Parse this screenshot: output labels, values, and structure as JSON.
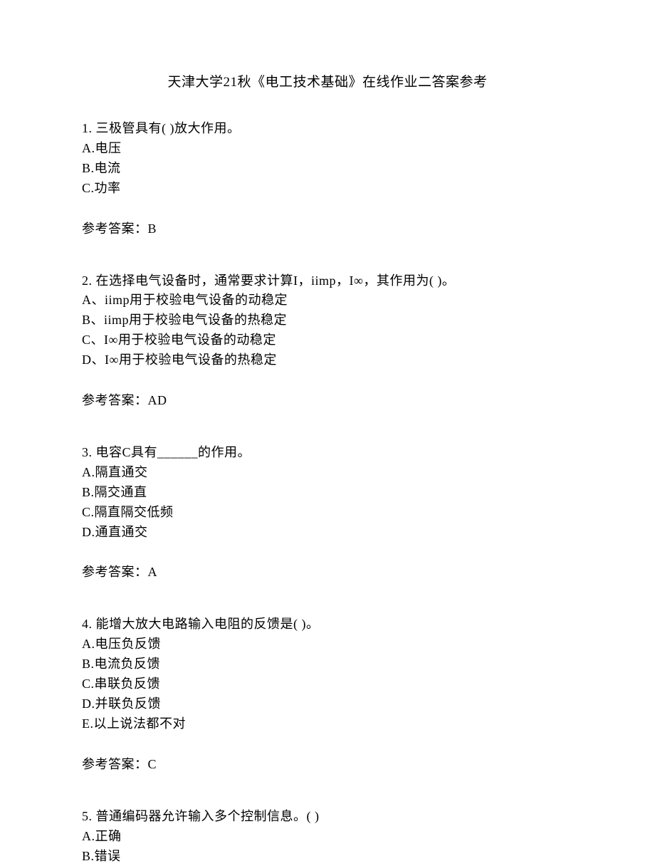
{
  "title": "天津大学21秋《电工技术基础》在线作业二答案参考",
  "questions": [
    {
      "number": "1.",
      "text": "三极管具有(  )放大作用。",
      "options": [
        "A.电压",
        "B.电流",
        "C.功率"
      ],
      "answer_label": "参考答案：",
      "answer": "B"
    },
    {
      "number": "2.",
      "text": "在选择电气设备时，通常要求计算I，iimp，I∞，其作用为(  )。",
      "options": [
        "A、iimp用于校验电气设备的动稳定",
        "B、iimp用于校验电气设备的热稳定",
        "C、I∞用于校验电气设备的动稳定",
        "D、I∞用于校验电气设备的热稳定"
      ],
      "answer_label": "参考答案：",
      "answer": "AD"
    },
    {
      "number": "3.",
      "text": "电容C具有______的作用。",
      "options": [
        "A.隔直通交",
        "B.隔交通直",
        "C.隔直隔交低频",
        "D.通直通交"
      ],
      "answer_label": "参考答案：",
      "answer": "A"
    },
    {
      "number": "4.",
      "text": "能增大放大电路输入电阻的反馈是(  )。",
      "options": [
        "A.电压负反馈",
        "B.电流负反馈",
        "C.串联负反馈",
        "D.并联负反馈",
        "E.以上说法都不对"
      ],
      "answer_label": "参考答案：",
      "answer": "C"
    },
    {
      "number": "5.",
      "text": "普通编码器允许输入多个控制信息。(  )",
      "options": [
        "A.正确",
        "B.错误"
      ],
      "answer_label": "",
      "answer": ""
    }
  ]
}
